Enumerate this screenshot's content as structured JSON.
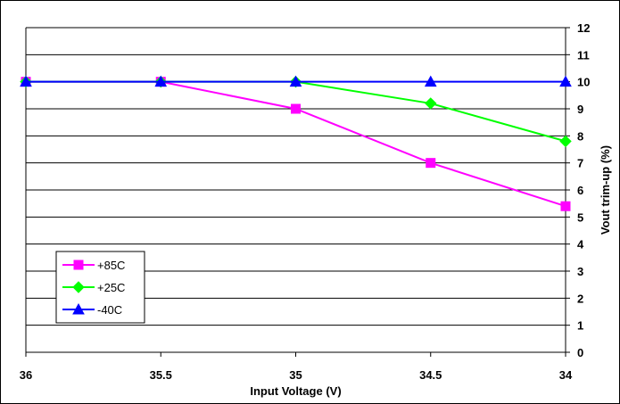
{
  "chart_data": {
    "type": "line",
    "xlabel": "Input Voltage (V)",
    "ylabel": "Vout trim-up (%)",
    "x": [
      36,
      35.5,
      35,
      34.5,
      34
    ],
    "x_tick_labels": [
      "36",
      "35.5",
      "35",
      "34.5",
      "34"
    ],
    "x_reversed": true,
    "ylim": [
      0,
      12
    ],
    "y_ticks": [
      0,
      1,
      2,
      3,
      4,
      5,
      6,
      7,
      8,
      9,
      10,
      11,
      12
    ],
    "y_axis_side": "right",
    "grid": true,
    "legend_position": "lower-left",
    "series": [
      {
        "name": "+85C",
        "color": "#ff00ff",
        "marker": "square",
        "values": [
          10,
          10,
          9,
          7,
          5.4
        ]
      },
      {
        "name": "+25C",
        "color": "#00ff00",
        "marker": "diamond",
        "values": [
          10,
          10,
          10,
          9.2,
          7.8
        ]
      },
      {
        "name": "-40C",
        "color": "#0000ff",
        "marker": "triangle",
        "values": [
          10,
          10,
          10,
          10,
          10
        ]
      }
    ]
  }
}
